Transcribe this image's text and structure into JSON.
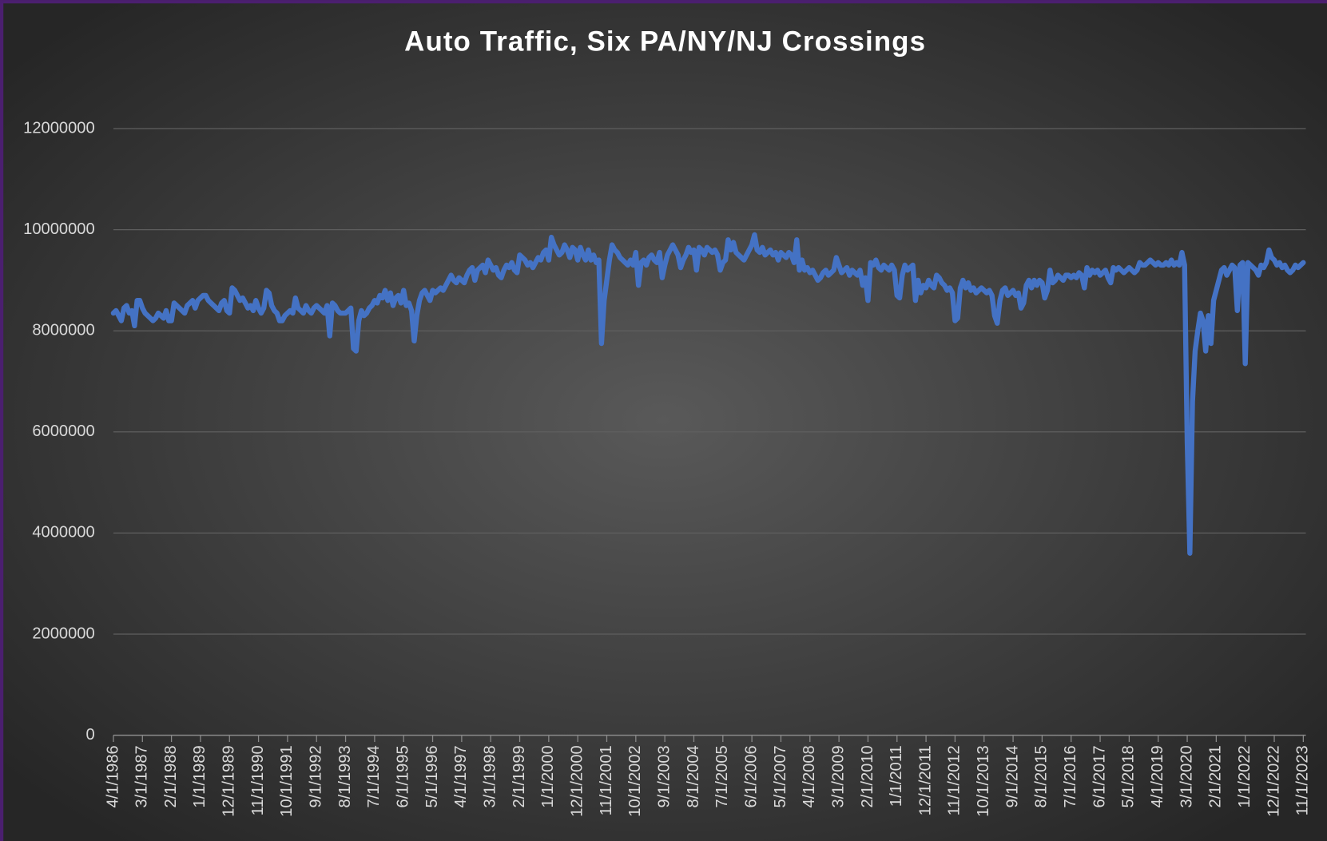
{
  "chart_data": {
    "type": "line",
    "title": "Auto Traffic, Six PA/NY/NJ Crossings",
    "categories": [
      "4/1/1986",
      null,
      null,
      null,
      null,
      null,
      null,
      null,
      null,
      null,
      null,
      "3/1/1987",
      null,
      null,
      null,
      null,
      null,
      null,
      null,
      null,
      null,
      null,
      "2/1/1988",
      null,
      null,
      null,
      null,
      null,
      null,
      null,
      null,
      null,
      null,
      "1/1/1989",
      null,
      null,
      null,
      null,
      null,
      null,
      null,
      null,
      null,
      null,
      "12/1/1989",
      null,
      null,
      null,
      null,
      null,
      null,
      null,
      null,
      null,
      null,
      "11/1/1990",
      null,
      null,
      null,
      null,
      null,
      null,
      null,
      null,
      null,
      null,
      "10/1/1991",
      null,
      null,
      null,
      null,
      null,
      null,
      null,
      null,
      null,
      null,
      "9/1/1992",
      null,
      null,
      null,
      null,
      null,
      null,
      null,
      null,
      null,
      null,
      "8/1/1993",
      null,
      null,
      null,
      null,
      null,
      null,
      null,
      null,
      null,
      null,
      "7/1/1994",
      null,
      null,
      null,
      null,
      null,
      null,
      null,
      null,
      null,
      null,
      "6/1/1995",
      null,
      null,
      null,
      null,
      null,
      null,
      null,
      null,
      null,
      null,
      "5/1/1996",
      null,
      null,
      null,
      null,
      null,
      null,
      null,
      null,
      null,
      null,
      "4/1/1997",
      null,
      null,
      null,
      null,
      null,
      null,
      null,
      null,
      null,
      null,
      "3/1/1998",
      null,
      null,
      null,
      null,
      null,
      null,
      null,
      null,
      null,
      null,
      "2/1/1999",
      null,
      null,
      null,
      null,
      null,
      null,
      null,
      null,
      null,
      null,
      "1/1/2000",
      null,
      null,
      null,
      null,
      null,
      null,
      null,
      null,
      null,
      null,
      "12/1/2000",
      null,
      null,
      null,
      null,
      null,
      null,
      null,
      null,
      null,
      null,
      "11/1/2001",
      null,
      null,
      null,
      null,
      null,
      null,
      null,
      null,
      null,
      null,
      "10/1/2002",
      null,
      null,
      null,
      null,
      null,
      null,
      null,
      null,
      null,
      null,
      "9/1/2003",
      null,
      null,
      null,
      null,
      null,
      null,
      null,
      null,
      null,
      null,
      "8/1/2004",
      null,
      null,
      null,
      null,
      null,
      null,
      null,
      null,
      null,
      null,
      "7/1/2005",
      null,
      null,
      null,
      null,
      null,
      null,
      null,
      null,
      null,
      null,
      "6/1/2006",
      null,
      null,
      null,
      null,
      null,
      null,
      null,
      null,
      null,
      null,
      "5/1/2007",
      null,
      null,
      null,
      null,
      null,
      null,
      null,
      null,
      null,
      null,
      "4/1/2008",
      null,
      null,
      null,
      null,
      null,
      null,
      null,
      null,
      null,
      null,
      "3/1/2009",
      null,
      null,
      null,
      null,
      null,
      null,
      null,
      null,
      null,
      null,
      "2/1/2010",
      null,
      null,
      null,
      null,
      null,
      null,
      null,
      null,
      null,
      null,
      "1/1/2011",
      null,
      null,
      null,
      null,
      null,
      null,
      null,
      null,
      null,
      null,
      "12/1/2011",
      null,
      null,
      null,
      null,
      null,
      null,
      null,
      null,
      null,
      null,
      "11/1/2012",
      null,
      null,
      null,
      null,
      null,
      null,
      null,
      null,
      null,
      null,
      "10/1/2013",
      null,
      null,
      null,
      null,
      null,
      null,
      null,
      null,
      null,
      null,
      "9/1/2014",
      null,
      null,
      null,
      null,
      null,
      null,
      null,
      null,
      null,
      null,
      "8/1/2015",
      null,
      null,
      null,
      null,
      null,
      null,
      null,
      null,
      null,
      null,
      "7/1/2016",
      null,
      null,
      null,
      null,
      null,
      null,
      null,
      null,
      null,
      null,
      "6/1/2017",
      null,
      null,
      null,
      null,
      null,
      null,
      null,
      null,
      null,
      null,
      "5/1/2018",
      null,
      null,
      null,
      null,
      null,
      null,
      null,
      null,
      null,
      null,
      "4/1/2019",
      null,
      null,
      null,
      null,
      null,
      null,
      null,
      null,
      null,
      null,
      "3/1/2020",
      null,
      null,
      null,
      null,
      null,
      null,
      null,
      null,
      null,
      null,
      "2/1/2021",
      null,
      null,
      null,
      null,
      null,
      null,
      null,
      null,
      null,
      null,
      "1/1/2022",
      null,
      null,
      null,
      null,
      null,
      null,
      null,
      null,
      null,
      null,
      "12/1/2022",
      null,
      null,
      null,
      null,
      null,
      null,
      null,
      null,
      null,
      null,
      "11/1/2023"
    ],
    "values": [
      8350000,
      8400000,
      8300000,
      8200000,
      8450000,
      8500000,
      8350000,
      8400000,
      8100000,
      8600000,
      8600000,
      8450000,
      8350000,
      8300000,
      8250000,
      8200000,
      8250000,
      8350000,
      8300000,
      8250000,
      8400000,
      8200000,
      8200000,
      8550000,
      8500000,
      8450000,
      8400000,
      8350000,
      8500000,
      8550000,
      8600000,
      8450000,
      8600000,
      8650000,
      8700000,
      8700000,
      8600000,
      8550000,
      8500000,
      8450000,
      8400000,
      8550000,
      8600000,
      8400000,
      8350000,
      8850000,
      8800000,
      8700000,
      8600000,
      8650000,
      8550000,
      8450000,
      8500000,
      8400000,
      8600000,
      8450000,
      8350000,
      8450000,
      8800000,
      8750000,
      8500000,
      8400000,
      8350000,
      8200000,
      8200000,
      8300000,
      8350000,
      8400000,
      8350000,
      8650000,
      8450000,
      8400000,
      8350000,
      8500000,
      8400000,
      8350000,
      8450000,
      8500000,
      8450000,
      8400000,
      8350000,
      8500000,
      7900000,
      8550000,
      8500000,
      8400000,
      8350000,
      8350000,
      8350000,
      8400000,
      8450000,
      7650000,
      7600000,
      8200000,
      8400000,
      8300000,
      8350000,
      8450000,
      8500000,
      8600000,
      8550000,
      8700000,
      8650000,
      8800000,
      8600000,
      8750000,
      8500000,
      8650000,
      8700000,
      8550000,
      8800000,
      8500000,
      8550000,
      8400000,
      7800000,
      8300000,
      8600000,
      8750000,
      8800000,
      8700000,
      8600000,
      8800000,
      8750000,
      8800000,
      8850000,
      8800000,
      8900000,
      9000000,
      9100000,
      9000000,
      8950000,
      9050000,
      9000000,
      8950000,
      9100000,
      9200000,
      9250000,
      9000000,
      9200000,
      9250000,
      9300000,
      9150000,
      9400000,
      9300000,
      9200000,
      9250000,
      9100000,
      9050000,
      9200000,
      9300000,
      9250000,
      9350000,
      9200000,
      9150000,
      9500000,
      9450000,
      9400000,
      9300000,
      9350000,
      9250000,
      9350000,
      9450000,
      9400000,
      9550000,
      9600000,
      9400000,
      9850000,
      9700000,
      9600000,
      9500000,
      9550000,
      9700000,
      9600000,
      9450000,
      9650000,
      9600000,
      9400000,
      9650000,
      9500000,
      9400000,
      9600000,
      9400000,
      9500000,
      9350000,
      9400000,
      7750000,
      8600000,
      9000000,
      9400000,
      9700000,
      9600000,
      9550000,
      9450000,
      9400000,
      9350000,
      9300000,
      9400000,
      9300000,
      9550000,
      8900000,
      9350000,
      9400000,
      9300000,
      9450000,
      9500000,
      9400000,
      9350000,
      9550000,
      9050000,
      9300000,
      9500000,
      9600000,
      9700000,
      9600000,
      9500000,
      9250000,
      9400000,
      9500000,
      9650000,
      9550000,
      9600000,
      9200000,
      9650000,
      9600000,
      9500000,
      9650000,
      9600000,
      9550000,
      9600000,
      9500000,
      9200000,
      9350000,
      9400000,
      9800000,
      9600000,
      9750000,
      9550000,
      9500000,
      9450000,
      9400000,
      9500000,
      9600000,
      9700000,
      9900000,
      9600000,
      9550000,
      9650000,
      9500000,
      9550000,
      9600000,
      9500000,
      9550000,
      9400000,
      9550000,
      9500000,
      9450000,
      9550000,
      9500000,
      9350000,
      9800000,
      9200000,
      9400000,
      9200000,
      9250000,
      9150000,
      9200000,
      9100000,
      9000000,
      9050000,
      9150000,
      9200000,
      9100000,
      9150000,
      9200000,
      9450000,
      9300000,
      9150000,
      9200000,
      9250000,
      9100000,
      9200000,
      9150000,
      9100000,
      9200000,
      8900000,
      9050000,
      8600000,
      9350000,
      9300000,
      9400000,
      9250000,
      9200000,
      9300000,
      9250000,
      9200000,
      9300000,
      9200000,
      8700000,
      8650000,
      9100000,
      9300000,
      9200000,
      9250000,
      9300000,
      8600000,
      9000000,
      8750000,
      8900000,
      8850000,
      9000000,
      8900000,
      8850000,
      9100000,
      9050000,
      8950000,
      8900000,
      8800000,
      8850000,
      8750000,
      8200000,
      8250000,
      8850000,
      9000000,
      8850000,
      8950000,
      8800000,
      8850000,
      8750000,
      8800000,
      8850000,
      8800000,
      8750000,
      8800000,
      8700000,
      8300000,
      8150000,
      8600000,
      8800000,
      8850000,
      8700000,
      8750000,
      8800000,
      8700000,
      8750000,
      8450000,
      8550000,
      8900000,
      9000000,
      8850000,
      9000000,
      8900000,
      9000000,
      8950000,
      8650000,
      8800000,
      9200000,
      8950000,
      9000000,
      9100000,
      9050000,
      9000000,
      9100000,
      9100000,
      9050000,
      9100000,
      9050000,
      9150000,
      9100000,
      8850000,
      9250000,
      9100000,
      9200000,
      9150000,
      9200000,
      9100000,
      9150000,
      9200000,
      9050000,
      8950000,
      9250000,
      9200000,
      9250000,
      9200000,
      9150000,
      9200000,
      9250000,
      9200000,
      9150000,
      9200000,
      9350000,
      9300000,
      9300000,
      9350000,
      9400000,
      9350000,
      9300000,
      9350000,
      9300000,
      9300000,
      9350000,
      9300000,
      9400000,
      9300000,
      9350000,
      9300000,
      9550000,
      9300000,
      5800000,
      3600000,
      6600000,
      7600000,
      8000000,
      8350000,
      8200000,
      7600000,
      8300000,
      7750000,
      8600000,
      8800000,
      9000000,
      9200000,
      9250000,
      9100000,
      9200000,
      9300000,
      9250000,
      8400000,
      9300000,
      9350000,
      7350000,
      9350000,
      9300000,
      9250000,
      9200000,
      9100000,
      9300000,
      9250000,
      9350000,
      9600000,
      9450000,
      9400000,
      9300000,
      9350000,
      9250000,
      9300000,
      9200000,
      9150000,
      9200000,
      9300000,
      9250000,
      9300000,
      9350000
    ],
    "color": "#4472c4",
    "ylim": [
      0,
      12000000
    ],
    "yticks": [
      0,
      2000000,
      4000000,
      6000000,
      8000000,
      10000000,
      12000000
    ],
    "grid": true
  }
}
